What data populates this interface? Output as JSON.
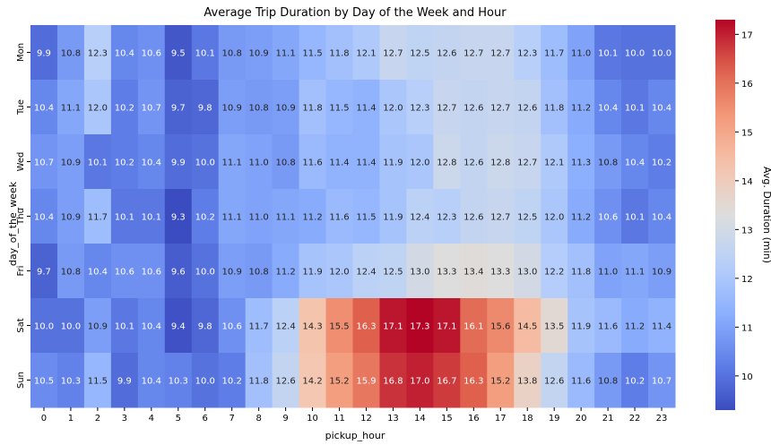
{
  "chart_data": {
    "type": "heatmap",
    "title": "Average Trip Duration by Day of the Week and Hour",
    "xlabel": "pickup_hour",
    "ylabel": "day_of_the_week",
    "x_categories": [
      "0",
      "1",
      "2",
      "3",
      "4",
      "5",
      "6",
      "7",
      "8",
      "9",
      "10",
      "11",
      "12",
      "13",
      "14",
      "15",
      "16",
      "17",
      "18",
      "19",
      "20",
      "21",
      "22",
      "23"
    ],
    "y_categories": [
      "Mon",
      "Tue",
      "Wed",
      "Thu",
      "Fri",
      "Sat",
      "Sun"
    ],
    "values": [
      [
        9.9,
        10.8,
        12.3,
        10.4,
        10.6,
        9.5,
        10.1,
        10.8,
        10.9,
        11.1,
        11.5,
        11.8,
        12.1,
        12.7,
        12.5,
        12.6,
        12.7,
        12.7,
        12.3,
        11.7,
        11.0,
        10.1,
        10.0,
        10.0
      ],
      [
        10.4,
        11.1,
        12.0,
        10.2,
        10.7,
        9.7,
        9.8,
        10.9,
        10.8,
        10.9,
        11.8,
        11.5,
        11.4,
        12.0,
        12.3,
        12.7,
        12.6,
        12.7,
        12.6,
        11.8,
        11.2,
        10.4,
        10.1,
        10.4
      ],
      [
        10.7,
        10.9,
        10.1,
        10.2,
        10.4,
        9.9,
        10.0,
        11.1,
        11.0,
        10.8,
        11.6,
        11.4,
        11.4,
        11.9,
        12.0,
        12.8,
        12.6,
        12.8,
        12.7,
        12.1,
        11.3,
        10.8,
        10.4,
        10.2
      ],
      [
        10.4,
        10.9,
        11.7,
        10.1,
        10.1,
        9.3,
        10.2,
        11.1,
        11.0,
        11.1,
        11.2,
        11.6,
        11.5,
        11.9,
        12.4,
        12.3,
        12.6,
        12.7,
        12.5,
        12.0,
        11.2,
        10.6,
        10.1,
        10.4
      ],
      [
        9.7,
        10.8,
        10.4,
        10.6,
        10.6,
        9.6,
        10.0,
        10.9,
        10.8,
        11.2,
        11.9,
        12.0,
        12.4,
        12.5,
        13.0,
        13.3,
        13.4,
        13.3,
        13.0,
        12.2,
        11.8,
        11.0,
        11.1,
        10.9
      ],
      [
        10.0,
        10.0,
        10.9,
        10.1,
        10.4,
        9.4,
        9.8,
        10.6,
        11.7,
        12.4,
        14.3,
        15.5,
        16.3,
        17.1,
        17.3,
        17.1,
        16.1,
        15.6,
        14.5,
        13.5,
        11.9,
        11.6,
        11.2,
        11.4
      ],
      [
        10.5,
        10.3,
        11.5,
        9.9,
        10.4,
        10.3,
        10.0,
        10.2,
        11.8,
        12.6,
        14.2,
        15.2,
        15.9,
        16.8,
        17.0,
        16.7,
        16.3,
        15.2,
        13.8,
        12.6,
        11.6,
        10.8,
        10.2,
        10.7
      ]
    ],
    "vmin": 9.3,
    "vmax": 17.3,
    "colormap": "coolwarm",
    "colorbar": {
      "label": "Avg. Duration (min)",
      "ticks": [
        10,
        11,
        12,
        13,
        14,
        15,
        16,
        17
      ]
    },
    "value_format": "1 decimal",
    "grid": false
  }
}
